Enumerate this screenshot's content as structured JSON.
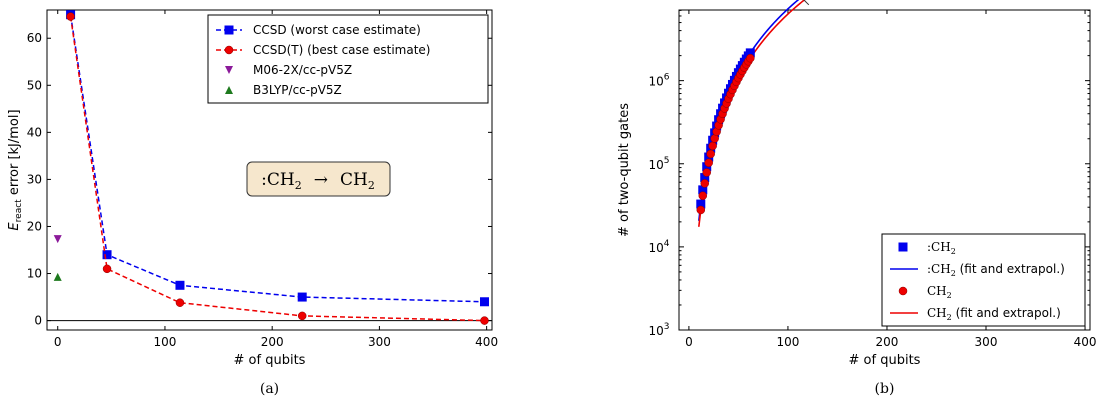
{
  "chart_data": [
    {
      "type": "scatter",
      "panel_label": "(a)",
      "xlabel": "# of qubits",
      "ylabel_main": "E",
      "ylabel_sub": "react",
      "ylabel_rest": " error [kJ/mol]",
      "xlim": [
        -10,
        405
      ],
      "ylim": [
        -2,
        66
      ],
      "xticks": [
        0,
        100,
        200,
        300,
        400
      ],
      "yticks": [
        0,
        10,
        20,
        30,
        40,
        50,
        60
      ],
      "annotation": {
        "left": ":CH",
        "left_sub": "2",
        "arrow": "→",
        "right": "CH",
        "right_sub": "2"
      },
      "legend_position": "upper-right",
      "colors": {
        "ccsd": "#0000ee",
        "ccsdt": "#ee0000",
        "m06": "#8b1a9a",
        "b3lyp": "#1e7a1e"
      },
      "series": [
        {
          "name": "CCSD (worst case estimate)",
          "style": "dashed-square",
          "x": [
            12,
            46,
            114,
            228,
            398
          ],
          "y": [
            65,
            14,
            7.5,
            5,
            4
          ]
        },
        {
          "name": "CCSD(T) (best case estimate)",
          "style": "dashed-circle",
          "x": [
            12,
            46,
            114,
            228,
            398
          ],
          "y": [
            64.6,
            11,
            3.8,
            1,
            0
          ]
        },
        {
          "name": "M06-2X/cc-pV5Z",
          "style": "triangle-down",
          "x": [
            0
          ],
          "y": [
            17.3
          ]
        },
        {
          "name": "B3LYP/cc-pV5Z",
          "style": "triangle-up",
          "x": [
            0
          ],
          "y": [
            9.3
          ]
        }
      ]
    },
    {
      "type": "line",
      "panel_label": "(b)",
      "xlabel": "# of qubits",
      "ylabel": "# of two-qubit gates",
      "yscale": "log",
      "xlim": [
        -10,
        405
      ],
      "ylim_log10": [
        3,
        6.85
      ],
      "xticks": [
        0,
        100,
        200,
        300,
        400
      ],
      "yticks": [
        {
          "base": "10",
          "exp": "3",
          "value": 1000
        },
        {
          "base": "10",
          "exp": "4",
          "value": 10000
        },
        {
          "base": "10",
          "exp": "5",
          "value": 100000
        },
        {
          "base": "10",
          "exp": "6",
          "value": 1000000
        }
      ],
      "legend_position": "lower-right",
      "colors": {
        "triplet": "#0000ee",
        "singlet": "#ee0000"
      },
      "legend": [
        {
          "label": ":CH",
          "sub": "2",
          "suffix": ""
        },
        {
          "label": ":CH",
          "sub": "2",
          "suffix": " (fit and extrapol.)"
        },
        {
          "label": "CH",
          "sub": "2",
          "suffix": ""
        },
        {
          "label": "CH",
          "sub": "2",
          "suffix": " (fit and extrapol.)"
        }
      ],
      "fit_triplet": {
        "a": 58.0,
        "b": 2.55
      },
      "fit_singlet": {
        "a": 48.0,
        "b": 2.56
      },
      "marker_x": [
        12,
        14,
        16,
        18,
        20,
        22,
        24,
        26,
        28,
        30,
        32,
        34,
        36,
        38,
        40,
        42,
        44,
        46,
        48,
        50,
        52,
        54,
        56,
        58,
        60,
        62
      ],
      "crossover_x": 114
    }
  ]
}
